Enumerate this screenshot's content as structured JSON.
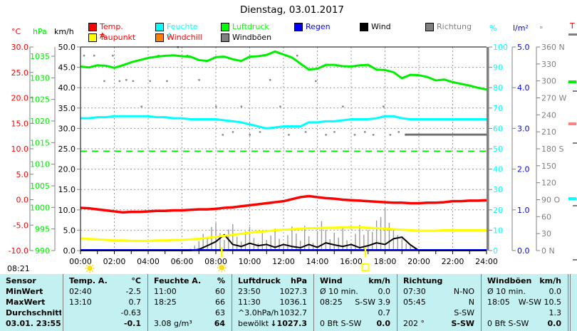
{
  "title": "Dienstag, 03.01.2017",
  "units": {
    "celsius": "°C",
    "hpa": "hPa",
    "kmh": "km/h",
    "percent": "%",
    "lm2": "l/m²",
    "degrees": "°",
    "t": "T"
  },
  "footer": {
    "sunrise_time": "08:21"
  },
  "legend": [
    {
      "label": "Temp. A.",
      "box": "#ff0000",
      "text": "#ff0000",
      "row": 0,
      "col": 0
    },
    {
      "label": "Taupunkt",
      "box": "#ffff00",
      "text": "#ff0000",
      "row": 1,
      "col": 0
    },
    {
      "label": "Feuchte A.",
      "box": "#00ffff",
      "text": "#00ffff",
      "row": 0,
      "col": 1
    },
    {
      "label": "Windchill",
      "box": "#ff8000",
      "text": "#ff0000",
      "row": 1,
      "col": 1
    },
    {
      "label": "Luftdruck",
      "box": "#00ff00",
      "text": "#00ff00",
      "row": 0,
      "col": 2
    },
    {
      "label": "Windböen",
      "box": "#808080",
      "text": "#000000",
      "row": 1,
      "col": 2
    },
    {
      "label": "Regen",
      "box": "#0000ff",
      "text": "#0000ff",
      "row": 0,
      "col": 3
    },
    {
      "label": "Wind",
      "box": "#000000",
      "text": "#000000",
      "row": 0,
      "col": 4
    },
    {
      "label": "Richtung",
      "box": "#808080",
      "text": "#808080",
      "row": 0,
      "col": 5
    }
  ],
  "chart_data": {
    "type": "line",
    "title": "Dienstag, 03.01.2017",
    "x_range": [
      0,
      24
    ],
    "x_step_hours": 0.5,
    "x_tick_labels": [
      "00:00",
      "02:00",
      "04:00",
      "06:00",
      "08:00",
      "10:00",
      "12:00",
      "14:00",
      "16:00",
      "18:00",
      "20:00",
      "22:00",
      "24:00"
    ],
    "grid": "dashed-gray",
    "axes": {
      "celsius": {
        "color": "#ff0000",
        "min": -10,
        "max": 30,
        "labels": [
          "30.0",
          "25.0",
          "20.0",
          "15.0",
          "10.0",
          "5.0",
          "0.0",
          "-5.0",
          "-10.0"
        ]
      },
      "hpa": {
        "color": "#00ee00",
        "min": 990,
        "max": 1037.1,
        "labels": [
          "1035",
          "1030",
          "1025",
          "1020",
          "1015",
          "1010",
          "1005",
          "1000",
          "995",
          "990"
        ]
      },
      "kmh": {
        "color": "#000000",
        "min": 0,
        "max": 50,
        "labels": [
          "50.0",
          "45.0",
          "40.0",
          "35.0",
          "30.0",
          "25.0",
          "20.0",
          "15.0",
          "10.0",
          "5.0",
          "0.0"
        ]
      },
      "percent": {
        "color": "#00ffff",
        "min": 0,
        "max": 100,
        "labels": [
          "100",
          "90",
          "80",
          "70",
          "60",
          "50",
          "40",
          "30",
          "20",
          "10",
          "0"
        ]
      },
      "lm2": {
        "color": "#0000ff",
        "min": 0,
        "max": 5,
        "labels": [
          "5.0",
          "4.0",
          "3.0",
          "2.0",
          "1.0",
          "0.0"
        ]
      },
      "degrees": {
        "color": "#808080",
        "min": 0,
        "max": 360,
        "labels": [
          "360 N",
          "330",
          "300",
          "270 W",
          "240",
          "210",
          "180 S",
          "150",
          "120",
          "90 O",
          "60",
          "30",
          "0 N"
        ]
      }
    },
    "series": [
      {
        "name": "Temp. A.",
        "axis": "celsius",
        "color": "#ff0000",
        "width": 3.5,
        "values": [
          -1.6,
          -1.7,
          -1.9,
          -2.1,
          -2.3,
          -2.5,
          -2.4,
          -2.4,
          -2.3,
          -2.2,
          -2.2,
          -2.1,
          -2.1,
          -2.0,
          -1.9,
          -1.9,
          -1.8,
          -1.6,
          -1.5,
          -1.3,
          -1.1,
          -0.9,
          -0.7,
          -0.5,
          -0.3,
          0.1,
          0.5,
          0.7,
          0.5,
          0.3,
          0.2,
          0.0,
          -0.1,
          -0.2,
          -0.3,
          -0.4,
          -0.5,
          -0.6,
          -0.6,
          -0.7,
          -0.7,
          -0.6,
          -0.6,
          -0.5,
          -0.3,
          -0.3,
          -0.2,
          -0.2,
          -0.1
        ]
      },
      {
        "name": "Taupunkt",
        "axis": "celsius",
        "color": "#ffff00",
        "width": 3,
        "values": [
          -7.6,
          -7.7,
          -7.8,
          -7.9,
          -8.0,
          -8.0,
          -8.1,
          -8.1,
          -8.1,
          -8.0,
          -8.0,
          -7.9,
          -7.9,
          -7.8,
          -7.7,
          -7.5,
          -7.3,
          -7.1,
          -6.9,
          -6.7,
          -6.5,
          -6.3,
          -6.2,
          -6.0,
          -5.9,
          -5.8,
          -5.7,
          -5.6,
          -5.6,
          -5.5,
          -5.5,
          -5.4,
          -5.4,
          -5.4,
          -5.5,
          -5.6,
          -5.7,
          -5.8,
          -5.9,
          -6.0,
          -6.1,
          -6.1,
          -6.1,
          -6.0,
          -6.0,
          -6.0,
          -6.0,
          -6.0,
          -6.0
        ]
      },
      {
        "name": "Feuchte A.",
        "axis": "percent",
        "color": "#00ffff",
        "width": 3,
        "values": [
          65,
          65,
          65.5,
          65.5,
          66,
          66,
          66,
          66,
          66,
          65.5,
          65.5,
          65,
          65,
          64.5,
          64.5,
          64.5,
          64.5,
          64,
          63.5,
          63,
          62,
          61,
          60,
          60.5,
          61,
          61,
          61,
          63,
          63,
          63.5,
          63.5,
          64,
          64.5,
          64.5,
          64.5,
          65,
          66,
          66,
          65,
          64.5,
          64.5,
          64.5,
          64.5,
          64.5,
          64.5,
          64.5,
          64.5,
          64.5,
          64.5
        ]
      },
      {
        "name": "Luftdruck",
        "axis": "hpa",
        "color": "#00ee00",
        "width": 3,
        "values": [
          1032.6,
          1032.4,
          1032.9,
          1032.8,
          1032.3,
          1032.9,
          1033.6,
          1034.1,
          1034.6,
          1034.9,
          1035.1,
          1035.2,
          1035.0,
          1034.9,
          1034.1,
          1033.9,
          1034.8,
          1034.9,
          1034.3,
          1033.9,
          1034.9,
          1035.0,
          1035.3,
          1036.1,
          1035.4,
          1034.7,
          1033.3,
          1031.9,
          1032.1,
          1033.0,
          1033.0,
          1032.7,
          1032.6,
          1032.9,
          1033.0,
          1031.9,
          1031.8,
          1031.3,
          1029.9,
          1030.7,
          1030.6,
          1030.2,
          1029.4,
          1029.6,
          1029.0,
          1028.6,
          1028.2,
          1027.7,
          1027.3
        ]
      },
      {
        "name": "Wind",
        "axis": "kmh",
        "color": "#000000",
        "width": 2,
        "values": [
          0,
          0,
          0,
          0,
          0,
          0,
          0,
          0,
          0,
          0,
          0,
          0,
          0,
          0,
          0.3,
          1.2,
          2.2,
          3.9,
          1.5,
          1.0,
          1.8,
          1.2,
          1.5,
          0.8,
          1.5,
          1.0,
          0.7,
          1.5,
          0.8,
          1.9,
          1.4,
          1.0,
          1.5,
          0.7,
          1.2,
          1.9,
          1.5,
          2.9,
          3.3,
          1.4,
          0,
          0,
          0,
          0,
          0,
          0,
          0,
          0,
          0
        ]
      },
      {
        "name": "Regen",
        "axis": "lm2",
        "color": "#0000ff",
        "width": 2,
        "constant": 0
      }
    ],
    "gust_spikes": {
      "name": "Windböen",
      "axis": "kmh",
      "color": "#9a9a9a",
      "start": 6.5,
      "step": 0.25,
      "values": [
        0.5,
        1.2,
        2.3,
        4.1,
        3.2,
        5.8,
        6.8,
        4.3,
        2.6,
        5.2,
        6.5,
        3.4,
        2.2,
        4.7,
        5.8,
        3.1,
        1.8,
        4.3,
        2.6,
        3.7,
        5.4,
        2.9,
        1.6,
        3.8,
        5.9,
        4.2,
        2.4,
        6.1,
        3.5,
        1.9,
        4.8,
        7.2,
        5.1,
        2.8,
        4.4,
        3.2,
        5.6,
        2.5,
        1.7,
        4.1,
        6.3,
        3.9,
        5.0,
        4.6,
        7.4,
        8.2,
        10.5,
        6.8,
        5.3,
        3.8,
        2.9,
        1.8,
        1.1,
        0.4
      ]
    },
    "direction_points": {
      "name": "Richtung",
      "axis": "degrees",
      "color": "#8a8a8a",
      "points": [
        [
          0.2,
          345
        ],
        [
          0.8,
          345
        ],
        [
          1.4,
          300
        ],
        [
          1.9,
          345
        ],
        [
          2.3,
          300
        ],
        [
          2.7,
          302
        ],
        [
          3.1,
          300
        ],
        [
          3.6,
          255
        ],
        [
          4.1,
          300
        ],
        [
          4.6,
          345
        ],
        [
          5.1,
          300
        ],
        [
          5.75,
          360
        ],
        [
          6.3,
          345
        ],
        [
          7.0,
          302
        ],
        [
          7.5,
          22
        ],
        [
          8.0,
          255
        ],
        [
          8.4,
          205
        ],
        [
          9.0,
          210
        ],
        [
          9.5,
          255
        ],
        [
          10.0,
          205
        ],
        [
          10.6,
          210
        ],
        [
          11.2,
          302
        ],
        [
          11.8,
          255
        ],
        [
          12.3,
          205
        ],
        [
          12.8,
          345
        ],
        [
          13.3,
          210
        ],
        [
          13.9,
          300
        ],
        [
          14.5,
          205
        ],
        [
          15.0,
          210
        ],
        [
          15.5,
          255
        ],
        [
          16.2,
          205
        ],
        [
          16.8,
          210
        ],
        [
          17.3,
          205
        ],
        [
          17.9,
          255
        ],
        [
          18.3,
          205
        ],
        [
          18.8,
          210
        ],
        [
          19.2,
          205
        ]
      ]
    },
    "direction_line": {
      "from": 19.2,
      "to": 24,
      "deg": 205,
      "color": "#707070"
    },
    "reference_line": {
      "axis": "hpa",
      "value": 1013,
      "color": "#00ee00",
      "style": "dashed"
    },
    "sun_markers": {
      "sunrise_h": 8.35,
      "sunset_h": 16.84,
      "sunrise_label": "08:21"
    },
    "right_markers": [
      {
        "color": "#808080",
        "x": 798,
        "y": 47,
        "w": 12,
        "h": 3
      },
      {
        "color": "#00ee00",
        "x": 798,
        "y": 113,
        "w": 11,
        "h": 4
      },
      {
        "color": "#808080",
        "x": 804,
        "y": 127,
        "w": 6,
        "h": 2
      },
      {
        "color": "#ff8080",
        "x": 798,
        "y": 172,
        "w": 11,
        "h": 4
      },
      {
        "color": "#808080",
        "x": 804,
        "y": 200,
        "w": 6,
        "h": 2
      },
      {
        "color": "#00ffff",
        "x": 798,
        "y": 277,
        "w": 11,
        "h": 4
      },
      {
        "color": "#808080",
        "x": 804,
        "y": 288,
        "w": 6,
        "h": 2
      },
      {
        "color": "#808080",
        "x": 804,
        "y": 364,
        "w": 6,
        "h": 2
      }
    ]
  },
  "table": {
    "row_labels": [
      "Sensor",
      "MinWert",
      "MaxWert",
      "Durchschnitt",
      "03.01. 23:55"
    ],
    "columns": [
      {
        "title": "Temp. A.",
        "unit": "°C",
        "rows": [
          [
            "02:40",
            "-2.5"
          ],
          [
            "13:10",
            "0.7"
          ],
          [
            "",
            "-0.63"
          ],
          [
            "",
            "-0.1"
          ]
        ]
      },
      {
        "title": "Feuchte A.",
        "unit": "%",
        "rows": [
          [
            "11:00",
            "60"
          ],
          [
            "18:25",
            "66"
          ],
          [
            "",
            "63"
          ],
          [
            "3.08 g/m³",
            "64"
          ]
        ]
      },
      {
        "title": "Luftdruck",
        "unit": "hPa",
        "rows": [
          [
            "23:50",
            "1027.3"
          ],
          [
            "11:30",
            "1036.1"
          ],
          [
            "^3.0hPa/h",
            "1032.7"
          ],
          [
            "bewölkt",
            "↓1027.3"
          ]
        ]
      },
      {
        "title": "Wind",
        "unit": "km/h",
        "rows": [
          [
            "Ø 10 min.",
            "0.0"
          ],
          [
            "08:25",
            "S-SW 3.9"
          ],
          [
            "",
            "0.7"
          ],
          [
            "0 Bft S-SW",
            "0.0"
          ]
        ]
      },
      {
        "title": "Richtung",
        "unit": "",
        "rows": [
          [
            "07:30",
            "N-NO"
          ],
          [
            "05:45",
            "N"
          ],
          [
            "",
            "S-SW"
          ],
          [
            "202 °",
            "S-SW"
          ]
        ]
      },
      {
        "title": "Windböen",
        "unit": "km/h",
        "rows": [
          [
            "Ø 10 min.",
            "0.0"
          ],
          [
            "18:05",
            "W-SW 10.5"
          ],
          [
            "",
            "1.3"
          ],
          [
            "0 Bft S-SW",
            "0.0"
          ]
        ]
      }
    ]
  }
}
